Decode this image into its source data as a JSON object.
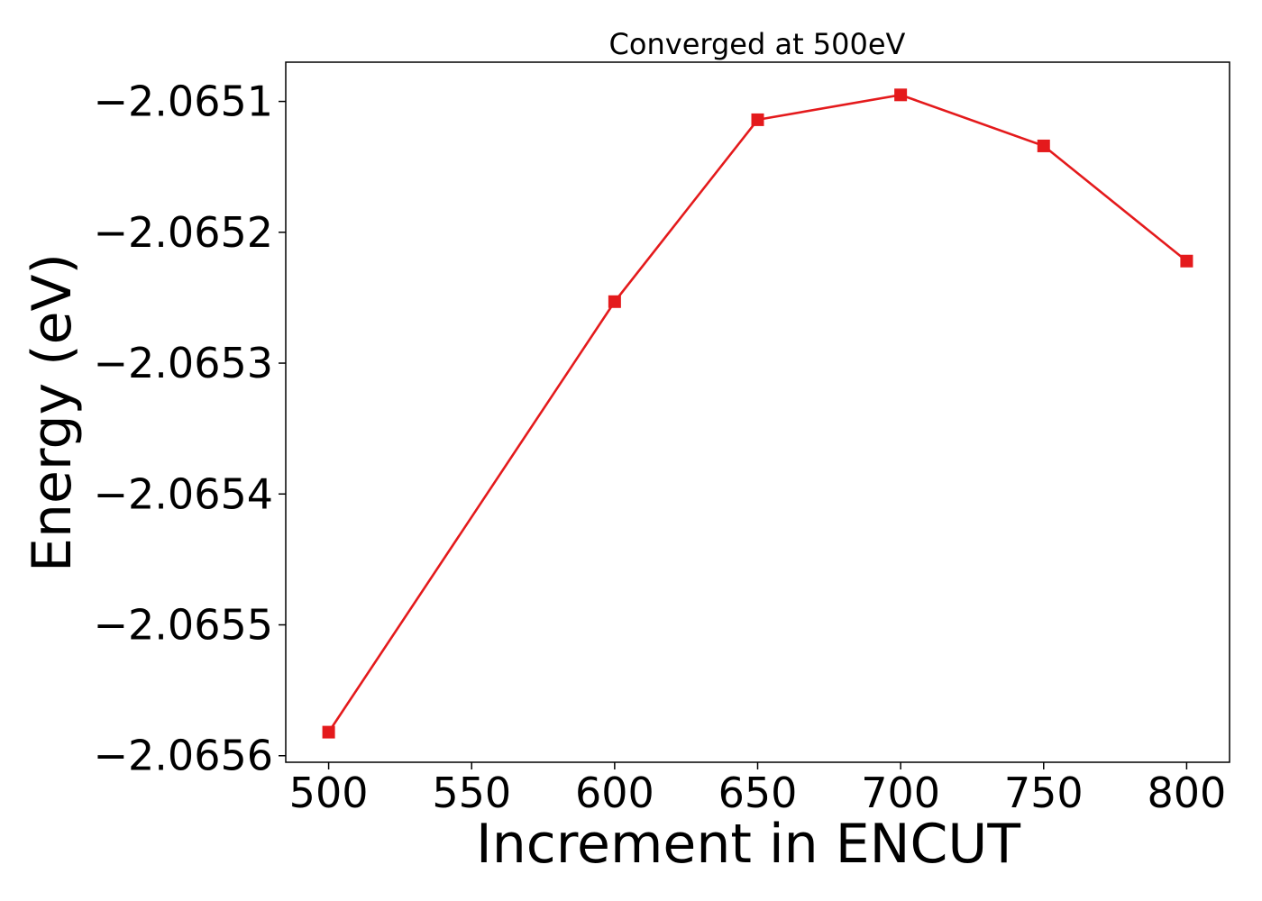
{
  "chart_data": {
    "type": "line",
    "title": "Converged at 500eV",
    "xlabel": "Increment in ENCUT",
    "ylabel": "Energy (eV)",
    "x": [
      500,
      600,
      650,
      700,
      750,
      800
    ],
    "series": [
      {
        "values": [
          -2.065582,
          -2.065253,
          -2.065114,
          -2.065095,
          -2.065134,
          -2.065222
        ]
      }
    ],
    "xlim": [
      485,
      815
    ],
    "ylim": [
      -2.065605,
      -2.06507
    ],
    "xticks": [
      500,
      550,
      600,
      650,
      700,
      750,
      800
    ],
    "xtick_labels": [
      "500",
      "550",
      "600",
      "650",
      "700",
      "750",
      "800"
    ],
    "yticks": [
      -2.0656,
      -2.0655,
      -2.0654,
      -2.0653,
      -2.0652,
      -2.0651
    ],
    "ytick_labels": [
      "−2.0656",
      "−2.0655",
      "−2.0654",
      "−2.0653",
      "−2.0652",
      "−2.0651"
    ],
    "grid": false,
    "marker": "square",
    "line_color": "#e41a1c"
  }
}
